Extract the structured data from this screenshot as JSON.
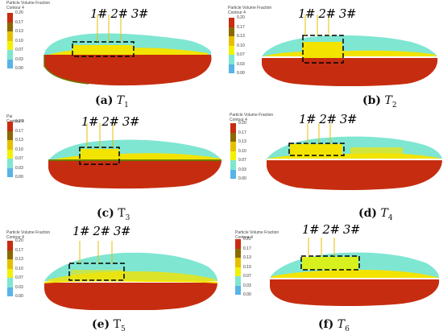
{
  "legend": {
    "title": "Particle Volume Fraction",
    "subtitle": "Contour 4",
    "title_alt": "Pai",
    "ticks": [
      "0.20",
      "0.17",
      "0.13",
      "0.10",
      "0.07",
      "0.03",
      "0.00"
    ],
    "colors": [
      "#c62d10",
      "#8a6a00",
      "#e6c000",
      "#f2f200",
      "#7fe6d2",
      "#56b5e6",
      "#3030e0"
    ]
  },
  "probes": {
    "p1": "1#",
    "p2": "2#",
    "p3": "3#"
  },
  "panels": [
    {
      "letter": "(a)",
      "label": "T",
      "sub": "1"
    },
    {
      "letter": "(b)",
      "label": "T",
      "sub": "2"
    },
    {
      "letter": "(c)",
      "label": "T",
      "sub": "3"
    },
    {
      "letter": "(d)",
      "label": "T",
      "sub": "4"
    },
    {
      "letter": "(e)",
      "label": "T",
      "sub": "5"
    },
    {
      "letter": "(f)",
      "label": "T",
      "sub": "6"
    }
  ],
  "colors": {
    "slurry": "#c62d10",
    "foam": "#7fe6d2",
    "mid": "#f2e400",
    "edge": "#6b7a00"
  }
}
